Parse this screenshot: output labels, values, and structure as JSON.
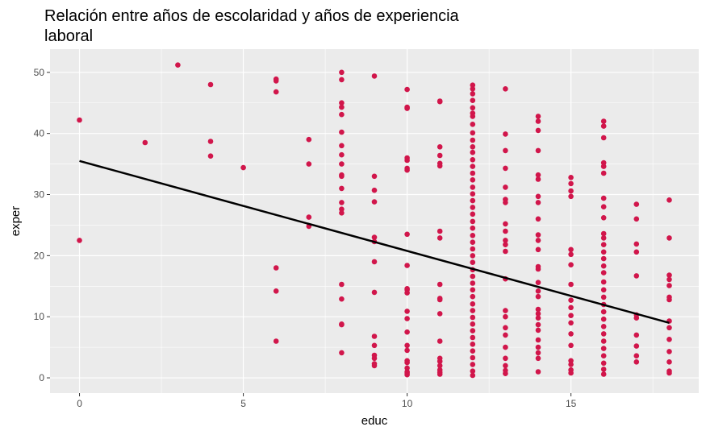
{
  "chart_data": {
    "type": "scatter",
    "title": "Relación entre años de escolaridad y años de experiencia laboral",
    "xlabel": "educ",
    "ylabel": "exper",
    "xlim": [
      -0.9,
      18.9
    ],
    "ylim": [
      -2.5,
      53.8
    ],
    "x_ticks": [
      0,
      5,
      10,
      15
    ],
    "y_ticks": [
      0,
      10,
      20,
      30,
      40,
      50
    ],
    "grid": true,
    "point_color": "#D1164B",
    "line_color": "#000000",
    "background": "#EBEBEB",
    "trend_line": {
      "x": [
        0,
        18
      ],
      "y": [
        35.5,
        9.0
      ]
    },
    "points": [
      [
        0,
        42.2
      ],
      [
        0,
        22.5
      ],
      [
        2,
        38.5
      ],
      [
        3,
        51.2
      ],
      [
        4,
        48
      ],
      [
        4,
        38.7
      ],
      [
        4,
        36.3
      ],
      [
        5,
        34.4
      ],
      [
        6,
        48.9
      ],
      [
        6,
        48.6
      ],
      [
        6,
        46.8
      ],
      [
        6,
        18
      ],
      [
        6,
        14.2
      ],
      [
        6,
        6
      ],
      [
        7,
        39
      ],
      [
        7,
        35
      ],
      [
        7,
        26.3
      ],
      [
        7,
        24.8
      ],
      [
        8,
        50
      ],
      [
        8,
        48.8
      ],
      [
        8,
        45
      ],
      [
        8,
        44.3
      ],
      [
        8,
        43.1
      ],
      [
        8,
        40.2
      ],
      [
        8,
        38
      ],
      [
        8,
        36.5
      ],
      [
        8,
        35
      ],
      [
        8,
        33.2
      ],
      [
        8,
        33
      ],
      [
        8,
        31
      ],
      [
        8,
        28.7
      ],
      [
        8,
        27.6
      ],
      [
        8,
        27
      ],
      [
        8,
        15.3
      ],
      [
        8,
        12.9
      ],
      [
        8,
        8.8
      ],
      [
        8,
        8.7
      ],
      [
        8,
        4.1
      ],
      [
        9,
        49.4
      ],
      [
        9,
        33
      ],
      [
        9,
        30.7
      ],
      [
        9,
        28.8
      ],
      [
        9,
        23
      ],
      [
        9,
        22.3
      ],
      [
        9,
        19
      ],
      [
        9,
        14
      ],
      [
        9,
        6.8
      ],
      [
        9,
        5.3
      ],
      [
        9,
        3.7
      ],
      [
        9,
        3.2
      ],
      [
        9,
        2.3
      ],
      [
        9,
        2
      ],
      [
        10,
        47.2
      ],
      [
        10,
        44.3
      ],
      [
        10,
        44.1
      ],
      [
        10,
        36
      ],
      [
        10,
        35.6
      ],
      [
        10,
        34.3
      ],
      [
        10,
        34
      ],
      [
        10,
        23.5
      ],
      [
        10,
        18.4
      ],
      [
        10,
        14.6
      ],
      [
        10,
        14.4
      ],
      [
        10,
        13.9
      ],
      [
        10,
        10.9
      ],
      [
        10,
        9.7
      ],
      [
        10,
        7.5
      ],
      [
        10,
        5.3
      ],
      [
        10,
        4.5
      ],
      [
        10,
        2.8
      ],
      [
        10,
        2.5
      ],
      [
        10,
        1.6
      ],
      [
        10,
        1
      ],
      [
        10,
        0.8
      ],
      [
        10,
        0.5
      ],
      [
        11,
        45.3
      ],
      [
        11,
        45.2
      ],
      [
        11,
        37.8
      ],
      [
        11,
        36.4
      ],
      [
        11,
        35.1
      ],
      [
        11,
        34.7
      ],
      [
        11,
        24
      ],
      [
        11,
        22.9
      ],
      [
        11,
        15.3
      ],
      [
        11,
        13
      ],
      [
        11,
        12.8
      ],
      [
        11,
        10.5
      ],
      [
        11,
        6
      ],
      [
        11,
        3.2
      ],
      [
        11,
        2.7
      ],
      [
        11,
        2
      ],
      [
        11,
        1.3
      ],
      [
        11,
        0.9
      ],
      [
        11,
        0.6
      ],
      [
        12,
        47.9
      ],
      [
        12,
        47.3
      ],
      [
        12,
        46.5
      ],
      [
        12,
        45.4
      ],
      [
        12,
        44.2
      ],
      [
        12,
        43.3
      ],
      [
        12,
        42.8
      ],
      [
        12,
        41.5
      ],
      [
        12,
        40.1
      ],
      [
        12,
        38.9
      ],
      [
        12,
        37.8
      ],
      [
        12,
        36.9
      ],
      [
        12,
        35.7
      ],
      [
        12,
        34.6
      ],
      [
        12,
        33.5
      ],
      [
        12,
        32.4
      ],
      [
        12,
        31.2
      ],
      [
        12,
        30.1
      ],
      [
        12,
        29
      ],
      [
        12,
        27.9
      ],
      [
        12,
        26.8
      ],
      [
        12,
        25.6
      ],
      [
        12,
        24.5
      ],
      [
        12,
        23.3
      ],
      [
        12,
        22.2
      ],
      [
        12,
        21.1
      ],
      [
        12,
        20
      ],
      [
        12,
        18.9
      ],
      [
        12,
        17.7
      ],
      [
        12,
        16.6
      ],
      [
        12,
        15.5
      ],
      [
        12,
        14.4
      ],
      [
        12,
        13.3
      ],
      [
        12,
        12.1
      ],
      [
        12,
        11
      ],
      [
        12,
        9.9
      ],
      [
        12,
        8.8
      ],
      [
        12,
        7.7
      ],
      [
        12,
        6.6
      ],
      [
        12,
        5.5
      ],
      [
        12,
        4.4
      ],
      [
        12,
        3.3
      ],
      [
        12,
        2.2
      ],
      [
        12,
        1.1
      ],
      [
        12,
        0.4
      ],
      [
        13,
        47.3
      ],
      [
        13,
        39.9
      ],
      [
        13,
        37.2
      ],
      [
        13,
        34.3
      ],
      [
        13,
        31.2
      ],
      [
        13,
        29.2
      ],
      [
        13,
        28.7
      ],
      [
        13,
        25.2
      ],
      [
        13,
        24
      ],
      [
        13,
        22.5
      ],
      [
        13,
        21.8
      ],
      [
        13,
        20.7
      ],
      [
        13,
        16.2
      ],
      [
        13,
        11
      ],
      [
        13,
        10
      ],
      [
        13,
        8.2
      ],
      [
        13,
        7
      ],
      [
        13,
        5
      ],
      [
        13,
        3.2
      ],
      [
        13,
        2
      ],
      [
        13,
        1.2
      ],
      [
        13,
        0.7
      ],
      [
        14,
        42.8
      ],
      [
        14,
        42
      ],
      [
        14,
        40.5
      ],
      [
        14,
        37.2
      ],
      [
        14,
        33.2
      ],
      [
        14,
        32.5
      ],
      [
        14,
        29.7
      ],
      [
        14,
        28.7
      ],
      [
        14,
        26
      ],
      [
        14,
        23.4
      ],
      [
        14,
        22.5
      ],
      [
        14,
        21
      ],
      [
        14,
        18.2
      ],
      [
        14,
        17.8
      ],
      [
        14,
        15.6
      ],
      [
        14,
        14.2
      ],
      [
        14,
        13.3
      ],
      [
        14,
        11.2
      ],
      [
        14,
        10.5
      ],
      [
        14,
        9.8
      ],
      [
        14,
        8.7
      ],
      [
        14,
        7.8
      ],
      [
        14,
        6.2
      ],
      [
        14,
        5
      ],
      [
        14,
        4.1
      ],
      [
        14,
        3.2
      ],
      [
        14,
        1
      ],
      [
        15,
        32.8
      ],
      [
        15,
        31.8
      ],
      [
        15,
        30.6
      ],
      [
        15,
        29.7
      ],
      [
        15,
        21
      ],
      [
        15,
        20.2
      ],
      [
        15,
        18.5
      ],
      [
        15,
        15.3
      ],
      [
        15,
        12.7
      ],
      [
        15,
        11.5
      ],
      [
        15,
        10.2
      ],
      [
        15,
        9
      ],
      [
        15,
        7.2
      ],
      [
        15,
        5.3
      ],
      [
        15,
        2.8
      ],
      [
        15,
        2.2
      ],
      [
        15,
        1.3
      ],
      [
        15,
        0.8
      ],
      [
        16,
        42
      ],
      [
        16,
        41.2
      ],
      [
        16,
        39.3
      ],
      [
        16,
        35.2
      ],
      [
        16,
        34.6
      ],
      [
        16,
        33.5
      ],
      [
        16,
        29.4
      ],
      [
        16,
        28
      ],
      [
        16,
        26.2
      ],
      [
        16,
        23.6
      ],
      [
        16,
        22.9
      ],
      [
        16,
        21.8
      ],
      [
        16,
        20.6
      ],
      [
        16,
        19.5
      ],
      [
        16,
        18.3
      ],
      [
        16,
        17.2
      ],
      [
        16,
        15.7
      ],
      [
        16,
        14.4
      ],
      [
        16,
        13.2
      ],
      [
        16,
        12
      ],
      [
        16,
        10.8
      ],
      [
        16,
        9.6
      ],
      [
        16,
        8.4
      ],
      [
        16,
        7.2
      ],
      [
        16,
        6
      ],
      [
        16,
        4.8
      ],
      [
        16,
        3.6
      ],
      [
        16,
        2.4
      ],
      [
        16,
        1.4
      ],
      [
        16,
        0.6
      ],
      [
        17,
        28.4
      ],
      [
        17,
        26
      ],
      [
        17,
        21.9
      ],
      [
        17,
        20.6
      ],
      [
        17,
        16.7
      ],
      [
        17,
        10.3
      ],
      [
        17,
        9.8
      ],
      [
        17,
        7
      ],
      [
        17,
        5.2
      ],
      [
        17,
        3.6
      ],
      [
        17,
        2.6
      ],
      [
        18,
        29.1
      ],
      [
        18,
        22.9
      ],
      [
        18,
        16.8
      ],
      [
        18,
        16.1
      ],
      [
        18,
        15.1
      ],
      [
        18,
        13.2
      ],
      [
        18,
        12.8
      ],
      [
        18,
        9.3
      ],
      [
        18,
        8.2
      ],
      [
        18,
        6.3
      ],
      [
        18,
        4.3
      ],
      [
        18,
        2.6
      ],
      [
        18,
        1.1
      ],
      [
        18,
        0.8
      ]
    ]
  }
}
